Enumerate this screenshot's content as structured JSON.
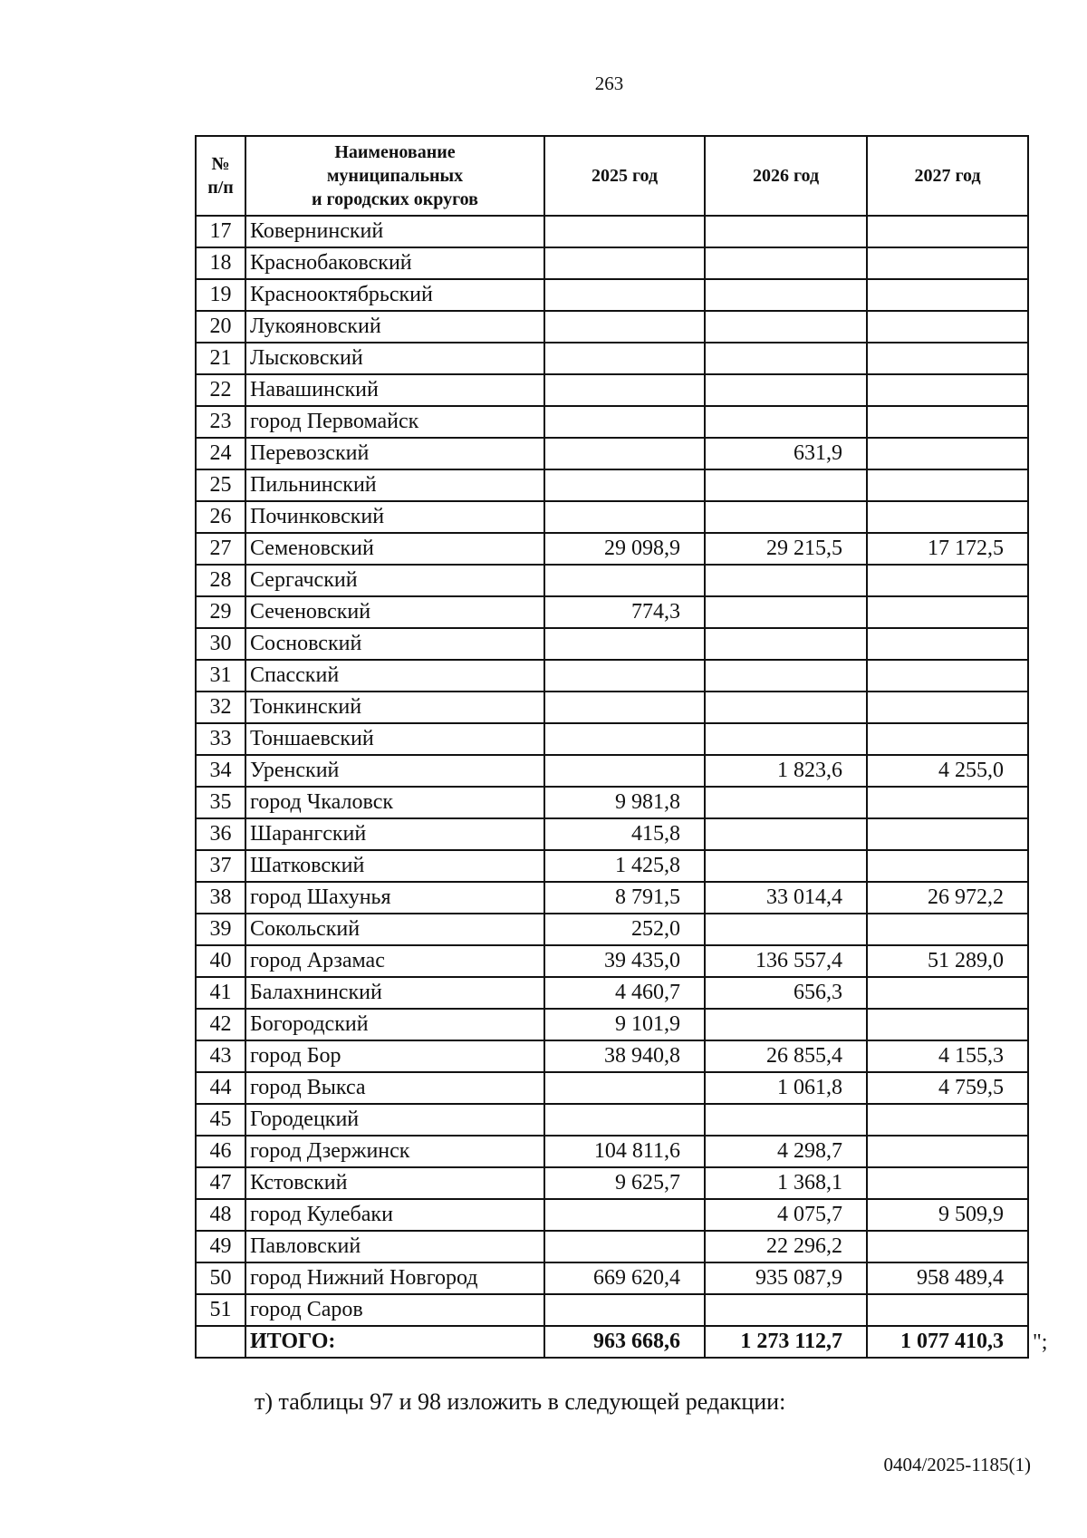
{
  "page_number": "263",
  "table": {
    "headers": [
      "№ п/п",
      "Наименование муниципальных и городских округов",
      "2025 год",
      "2026 год",
      "2027 год"
    ],
    "header_lines": {
      "num": [
        "№",
        "п/п"
      ],
      "name": [
        "Наименование",
        "муниципальных",
        "и городских округов"
      ]
    },
    "rows": [
      [
        "17",
        "Ковернинский",
        "",
        "",
        ""
      ],
      [
        "18",
        "Краснобаковский",
        "",
        "",
        ""
      ],
      [
        "19",
        "Краснооктябрьский",
        "",
        "",
        ""
      ],
      [
        "20",
        "Лукояновский",
        "",
        "",
        ""
      ],
      [
        "21",
        "Лысковский",
        "",
        "",
        ""
      ],
      [
        "22",
        "Навашинский",
        "",
        "",
        ""
      ],
      [
        "23",
        "город Первомайск",
        "",
        "",
        ""
      ],
      [
        "24",
        "Перевозский",
        "",
        "631,9",
        ""
      ],
      [
        "25",
        "Пильнинский",
        "",
        "",
        ""
      ],
      [
        "26",
        "Починковский",
        "",
        "",
        ""
      ],
      [
        "27",
        "Семеновский",
        "29 098,9",
        "29 215,5",
        "17 172,5"
      ],
      [
        "28",
        "Сергачский",
        "",
        "",
        ""
      ],
      [
        "29",
        "Сеченовский",
        "774,3",
        "",
        ""
      ],
      [
        "30",
        "Сосновский",
        "",
        "",
        ""
      ],
      [
        "31",
        "Спасский",
        "",
        "",
        ""
      ],
      [
        "32",
        "Тонкинский",
        "",
        "",
        ""
      ],
      [
        "33",
        "Тоншаевский",
        "",
        "",
        ""
      ],
      [
        "34",
        "Уренский",
        "",
        "1 823,6",
        "4 255,0"
      ],
      [
        "35",
        "город Чкаловск",
        "9 981,8",
        "",
        ""
      ],
      [
        "36",
        "Шарангский",
        "415,8",
        "",
        ""
      ],
      [
        "37",
        "Шатковский",
        "1 425,8",
        "",
        ""
      ],
      [
        "38",
        "город Шахунья",
        "8 791,5",
        "33 014,4",
        "26 972,2"
      ],
      [
        "39",
        "Сокольский",
        "252,0",
        "",
        ""
      ],
      [
        "40",
        "город Арзамас",
        "39 435,0",
        "136 557,4",
        "51 289,0"
      ],
      [
        "41",
        "Балахнинский",
        "4 460,7",
        "656,3",
        ""
      ],
      [
        "42",
        "Богородский",
        "9 101,9",
        "",
        ""
      ],
      [
        "43",
        "город Бор",
        "38 940,8",
        "26 855,4",
        "4 155,3"
      ],
      [
        "44",
        "город Выкса",
        "",
        "1 061,8",
        "4 759,5"
      ],
      [
        "45",
        "Городецкий",
        "",
        "",
        ""
      ],
      [
        "46",
        "город Дзержинск",
        "104 811,6",
        "4 298,7",
        ""
      ],
      [
        "47",
        "Кстовский",
        "9 625,7",
        "1 368,1",
        ""
      ],
      [
        "48",
        "город Кулебаки",
        "",
        "4 075,7",
        "9 509,9"
      ],
      [
        "49",
        "Павловский",
        "",
        "22 296,2",
        ""
      ],
      [
        "50",
        "город Нижний Новгород",
        "669 620,4",
        "935 087,9",
        "958 489,4"
      ],
      [
        "51",
        "город Саров",
        "",
        "",
        ""
      ]
    ],
    "total": {
      "label": "ИТОГО:",
      "values": [
        "963 668,6",
        "1 273 112,7",
        "1 077 410,3"
      ]
    },
    "closing_quote": "\";"
  },
  "paragraph": "т) таблицы 97 и 98 изложить в следующей редакции:",
  "footer_code": "0404/2025-1185(1)"
}
